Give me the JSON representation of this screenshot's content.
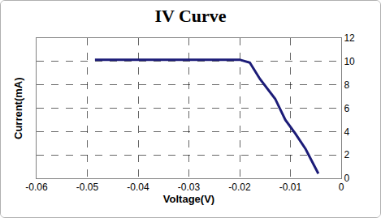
{
  "chart_data": {
    "type": "line",
    "title": "IV Curve",
    "x_label": "Voltage(V)",
    "y_label": "Current(mA)",
    "x": [
      -0.0485,
      -0.03,
      -0.02,
      -0.018,
      -0.016,
      -0.013,
      -0.011,
      -0.009,
      -0.007,
      -0.0045
    ],
    "values": [
      10.15,
      10.15,
      10.15,
      9.9,
      8.5,
      6.8,
      5.0,
      3.8,
      2.5,
      0.4
    ],
    "color": "#1c1c78",
    "line_style": "solid",
    "xlim": [
      -0.06,
      0
    ],
    "xticks": [
      -0.06,
      -0.05,
      -0.04,
      -0.03,
      -0.02,
      -0.01,
      0
    ],
    "ylim": [
      0,
      12
    ],
    "yticks": [
      0,
      2,
      4,
      6,
      8,
      10,
      12
    ],
    "grid": true
  }
}
